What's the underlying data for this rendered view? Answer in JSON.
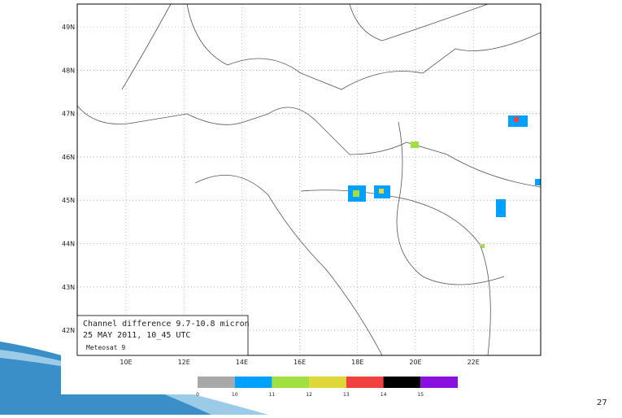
{
  "map": {
    "lat_labels": [
      "49N",
      "48N",
      "47N",
      "46N",
      "45N",
      "44N",
      "43N",
      "42N"
    ],
    "lon_labels": [
      "10E",
      "12E",
      "14E",
      "16E",
      "18E",
      "20E",
      "22E"
    ],
    "caption": [
      "Channel difference 9.7-10.8 micron",
      "25 MAY 2011, 10_45 UTC",
      "Meteosat 9"
    ],
    "colorbar": {
      "colors": [
        "#a8a8a8",
        "#00a0ff",
        "#a0e040",
        "#e0d838",
        "#f04040",
        "#000000",
        "#8a10e0"
      ],
      "labels": [
        "0",
        "10",
        "11",
        "12",
        "13",
        "14",
        "15"
      ]
    }
  },
  "slide_number": "27"
}
